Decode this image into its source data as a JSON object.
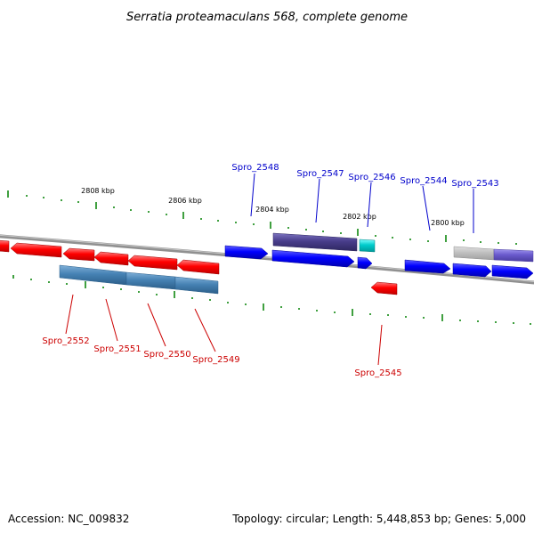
{
  "title": "Serratia proteamaculans 568, complete genome",
  "footer": {
    "accession": "Accession: NC_009832",
    "summary": "Topology: circular; Length: 5,448,853 bp; Genes: 5,000"
  },
  "colors": {
    "backbone": "#808080",
    "tick": "#008000",
    "forward_label": "#0000cc",
    "reverse_label": "#cc0000",
    "forward_gene": "#0000ff",
    "reverse_gene": "#ff0000",
    "steel_gene": "#4682b4",
    "dark_slate_gene": "#483d8b",
    "cyan_gene": "#00cccc",
    "grey_gene": "#c0c0c0",
    "slate_gene": "#6a5acd"
  },
  "scale_labels": [
    "2808 kbp",
    "2806 kbp",
    "2804 kbp",
    "2802 kbp",
    "2800 kbp"
  ],
  "gene_labels": {
    "forward": [
      "Spro_2548",
      "Spro_2547",
      "Spro_2546",
      "Spro_2544",
      "Spro_2543"
    ],
    "reverse": [
      "Spro_2552",
      "Spro_2551",
      "Spro_2550",
      "Spro_2549",
      "Spro_2545"
    ]
  }
}
